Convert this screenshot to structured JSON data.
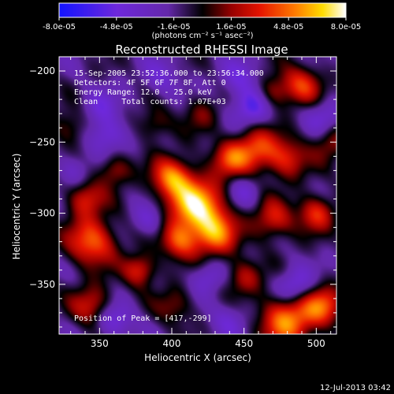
{
  "chart_data": {
    "type": "heatmap",
    "title": "Reconstructed RHESSI Image",
    "xlabel": "Heliocentric X (arcsec)",
    "ylabel": "Heliocentric Y (arcsec)",
    "xlim": [
      322,
      514
    ],
    "ylim": [
      -385,
      -190
    ],
    "xticks": [
      350,
      400,
      450,
      500
    ],
    "yticks": [
      -200,
      -250,
      -300,
      -350
    ],
    "colorbar": {
      "range": [
        -8e-05,
        8e-05
      ],
      "ticks": [
        "-8.0e-05",
        "-4.8e-05",
        "-1.6e-05",
        "1.6e-05",
        "4.8e-05",
        "8.0e-05"
      ],
      "units": "(photons cm⁻² s⁻¹ asec⁻²)"
    },
    "annotations": [
      "15-Sep-2005 23:52:36.000 to 23:56:34.000",
      "Detectors: 4F 5F 6F 7F 8F, Att 0",
      "Energy Range: 12.0 - 25.0 keV",
      "Clean     Total counts: 1.07E+03"
    ],
    "peak_label": "Position of Peak = [417,-299]",
    "peak": [
      417,
      -299
    ],
    "sources": [
      {
        "x": 417,
        "y": -295,
        "a": 1.0,
        "r": 14
      },
      {
        "x": 400,
        "y": -275,
        "a": 0.75,
        "r": 10
      },
      {
        "x": 430,
        "y": -315,
        "a": 0.7,
        "r": 11
      },
      {
        "x": 405,
        "y": -320,
        "a": 0.6,
        "r": 9
      },
      {
        "x": 440,
        "y": -262,
        "a": 0.55,
        "r": 9
      },
      {
        "x": 345,
        "y": -320,
        "a": 0.75,
        "r": 12
      },
      {
        "x": 340,
        "y": -290,
        "a": 0.55,
        "r": 9
      },
      {
        "x": 360,
        "y": -270,
        "a": 0.45,
        "r": 8
      },
      {
        "x": 378,
        "y": -340,
        "a": 0.6,
        "r": 8
      },
      {
        "x": 345,
        "y": -365,
        "a": 0.55,
        "r": 10
      },
      {
        "x": 490,
        "y": -210,
        "a": 0.6,
        "r": 10
      },
      {
        "x": 470,
        "y": -215,
        "a": 0.4,
        "r": 8
      },
      {
        "x": 458,
        "y": -255,
        "a": 0.65,
        "r": 11
      },
      {
        "x": 480,
        "y": -262,
        "a": 0.55,
        "r": 10
      },
      {
        "x": 470,
        "y": -305,
        "a": 0.55,
        "r": 10
      },
      {
        "x": 500,
        "y": -300,
        "a": 0.6,
        "r": 9
      },
      {
        "x": 450,
        "y": -345,
        "a": 0.45,
        "r": 9
      },
      {
        "x": 480,
        "y": -375,
        "a": 0.85,
        "r": 13
      },
      {
        "x": 505,
        "y": -365,
        "a": 0.65,
        "r": 10
      },
      {
        "x": 510,
        "y": -250,
        "a": 0.4,
        "r": 9
      },
      {
        "x": 330,
        "y": -240,
        "a": 0.35,
        "r": 9
      },
      {
        "x": 402,
        "y": -365,
        "a": 0.35,
        "r": 9
      },
      {
        "x": 388,
        "y": -238,
        "a": 0.35,
        "r": 8
      },
      {
        "x": 420,
        "y": -230,
        "a": 0.3,
        "r": 9
      },
      {
        "x": 355,
        "y": -245,
        "a": -0.45,
        "r": 9
      },
      {
        "x": 350,
        "y": -225,
        "a": -0.3,
        "r": 9
      },
      {
        "x": 393,
        "y": -205,
        "a": -0.3,
        "r": 9
      },
      {
        "x": 447,
        "y": -205,
        "a": -0.35,
        "r": 9
      },
      {
        "x": 455,
        "y": -225,
        "a": -0.55,
        "r": 9
      },
      {
        "x": 505,
        "y": -232,
        "a": -0.35,
        "r": 9
      },
      {
        "x": 485,
        "y": -352,
        "a": -0.5,
        "r": 9
      },
      {
        "x": 360,
        "y": -375,
        "a": -0.45,
        "r": 9
      },
      {
        "x": 385,
        "y": -305,
        "a": -0.35,
        "r": 8
      },
      {
        "x": 425,
        "y": -345,
        "a": -0.35,
        "r": 8
      },
      {
        "x": 450,
        "y": -285,
        "a": -0.3,
        "r": 8
      },
      {
        "x": 332,
        "y": -270,
        "a": -0.3,
        "r": 8
      },
      {
        "x": 440,
        "y": -375,
        "a": -0.3,
        "r": 9
      }
    ]
  },
  "footer": {
    "timestamp": "12-Jul-2013 03:42"
  }
}
